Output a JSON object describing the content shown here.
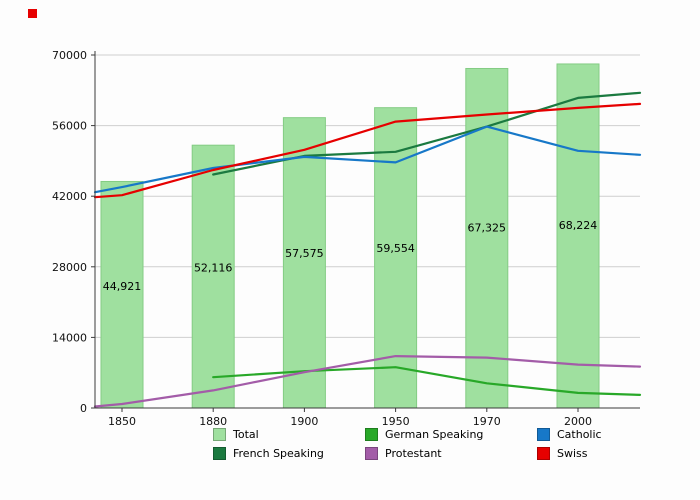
{
  "page": {
    "background": "#fdfdfd",
    "corner_marker_color": "#e60000"
  },
  "chart_data": {
    "type": "bar",
    "subtype": "bar-with-lines",
    "categories": [
      "1850",
      "1880",
      "1900",
      "1950",
      "1970",
      "2000"
    ],
    "title": "",
    "xlabel": "",
    "ylabel": "",
    "ylim": [
      0,
      70000
    ],
    "yticks": [
      0,
      14000,
      28000,
      42000,
      56000,
      70000
    ],
    "grid": true,
    "legend_position": "bottom",
    "bar_series": {
      "name": "Total",
      "color": "#9fe09f",
      "border": "#84cc84",
      "values": [
        44921,
        52116,
        57575,
        59554,
        67325,
        68224
      ],
      "labels": [
        "44,921",
        "52,116",
        "57,575",
        "59,554",
        "67,325",
        "68,224"
      ]
    },
    "line_series": [
      {
        "name": "German Speaking",
        "color": "#28a828",
        "values": [
          null,
          6100,
          7300,
          8100,
          4900,
          3000
        ],
        "edge_left": null,
        "edge_right": 2600
      },
      {
        "name": "Protestant",
        "color": "#a35ca8",
        "values": [
          800,
          3500,
          7100,
          10300,
          10000,
          8600
        ],
        "edge_left": 300,
        "edge_right": 8200
      },
      {
        "name": "French Speaking",
        "color": "#1b7a40",
        "values": [
          null,
          46300,
          50000,
          50800,
          55800,
          61500
        ],
        "edge_left": null,
        "edge_right": 62500
      },
      {
        "name": "Catholic",
        "color": "#1778c8",
        "values": [
          43800,
          47600,
          49800,
          48700,
          55800,
          51000
        ],
        "edge_left": 42800,
        "edge_right": 50200
      },
      {
        "name": "Swiss",
        "color": "#e60000",
        "values": [
          42200,
          47200,
          51200,
          56800,
          58200,
          59500
        ],
        "edge_left": 41800,
        "edge_right": 60300
      }
    ]
  },
  "legend": {
    "items": [
      {
        "label": "Total",
        "color": "#9fe09f"
      },
      {
        "label": "German Speaking",
        "color": "#28a828"
      },
      {
        "label": "Catholic",
        "color": "#1778c8"
      },
      {
        "label": "French Speaking",
        "color": "#1b7a40"
      },
      {
        "label": "Protestant",
        "color": "#a35ca8"
      },
      {
        "label": "Swiss",
        "color": "#e60000"
      }
    ]
  }
}
